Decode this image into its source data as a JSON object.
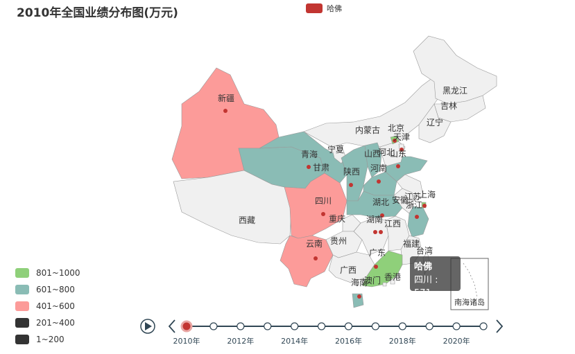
{
  "chart_data": {
    "type": "map",
    "title": "2010年全国业绩分布图(万元)",
    "series": [
      {
        "name": "哈佛"
      }
    ],
    "visual_map": [
      {
        "range": "801~1000",
        "color": "#8fd07a"
      },
      {
        "range": "601~800",
        "color": "#8abcb5"
      },
      {
        "range": "401~600",
        "color": "#fc9b99"
      },
      {
        "range": "201~400",
        "color": "#333333"
      },
      {
        "range": "1~200",
        "color": "#333333"
      }
    ],
    "colors": {
      "default": "#f0f0f0",
      "border": "#999999",
      "point": "#c23531"
    },
    "regions": [
      {
        "name": "新疆",
        "band": "401~600"
      },
      {
        "name": "西藏",
        "band": "none"
      },
      {
        "name": "青海",
        "band": "601~800"
      },
      {
        "name": "甘肃",
        "band": "601~800"
      },
      {
        "name": "四川",
        "band": "401~600",
        "value": 571
      },
      {
        "name": "云南",
        "band": "401~600"
      },
      {
        "name": "宁夏",
        "band": "none"
      },
      {
        "name": "内蒙古",
        "band": "none"
      },
      {
        "name": "陕西",
        "band": "601~800"
      },
      {
        "name": "山西",
        "band": "601~800"
      },
      {
        "name": "河南",
        "band": "601~800"
      },
      {
        "name": "湖北",
        "band": "601~800"
      },
      {
        "name": "山东",
        "band": "601~800"
      },
      {
        "name": "河北",
        "band": "none"
      },
      {
        "name": "北京",
        "band": "801~1000"
      },
      {
        "name": "天津",
        "band": "none"
      },
      {
        "name": "重庆",
        "band": "none"
      },
      {
        "name": "贵州",
        "band": "none"
      },
      {
        "name": "广西",
        "band": "none"
      },
      {
        "name": "湖南",
        "band": "none"
      },
      {
        "name": "江西",
        "band": "none"
      },
      {
        "name": "安徽",
        "band": "none"
      },
      {
        "name": "江苏",
        "band": "none"
      },
      {
        "name": "上海",
        "band": "801~1000"
      },
      {
        "name": "浙江",
        "band": "601~800"
      },
      {
        "name": "福建",
        "band": "none"
      },
      {
        "name": "广东",
        "band": "801~1000"
      },
      {
        "name": "海南",
        "band": "601~800"
      },
      {
        "name": "香港",
        "band": "none"
      },
      {
        "name": "澳门",
        "band": "none"
      },
      {
        "name": "台湾",
        "band": "none"
      },
      {
        "name": "黑龙江",
        "band": "none"
      },
      {
        "name": "吉林",
        "band": "none"
      },
      {
        "name": "辽宁",
        "band": "none"
      },
      {
        "name": "南海诸岛",
        "band": "none"
      }
    ],
    "tooltip": {
      "series": "哈佛",
      "text": "四川 : 571"
    },
    "timeline": {
      "years": [
        "2010年",
        "2011年",
        "2012年",
        "2013年",
        "2014年",
        "2015年",
        "2016年",
        "2017年",
        "2018年",
        "2019年",
        "2020年",
        "2021年"
      ],
      "label_every": 2,
      "current": "2010年"
    }
  }
}
